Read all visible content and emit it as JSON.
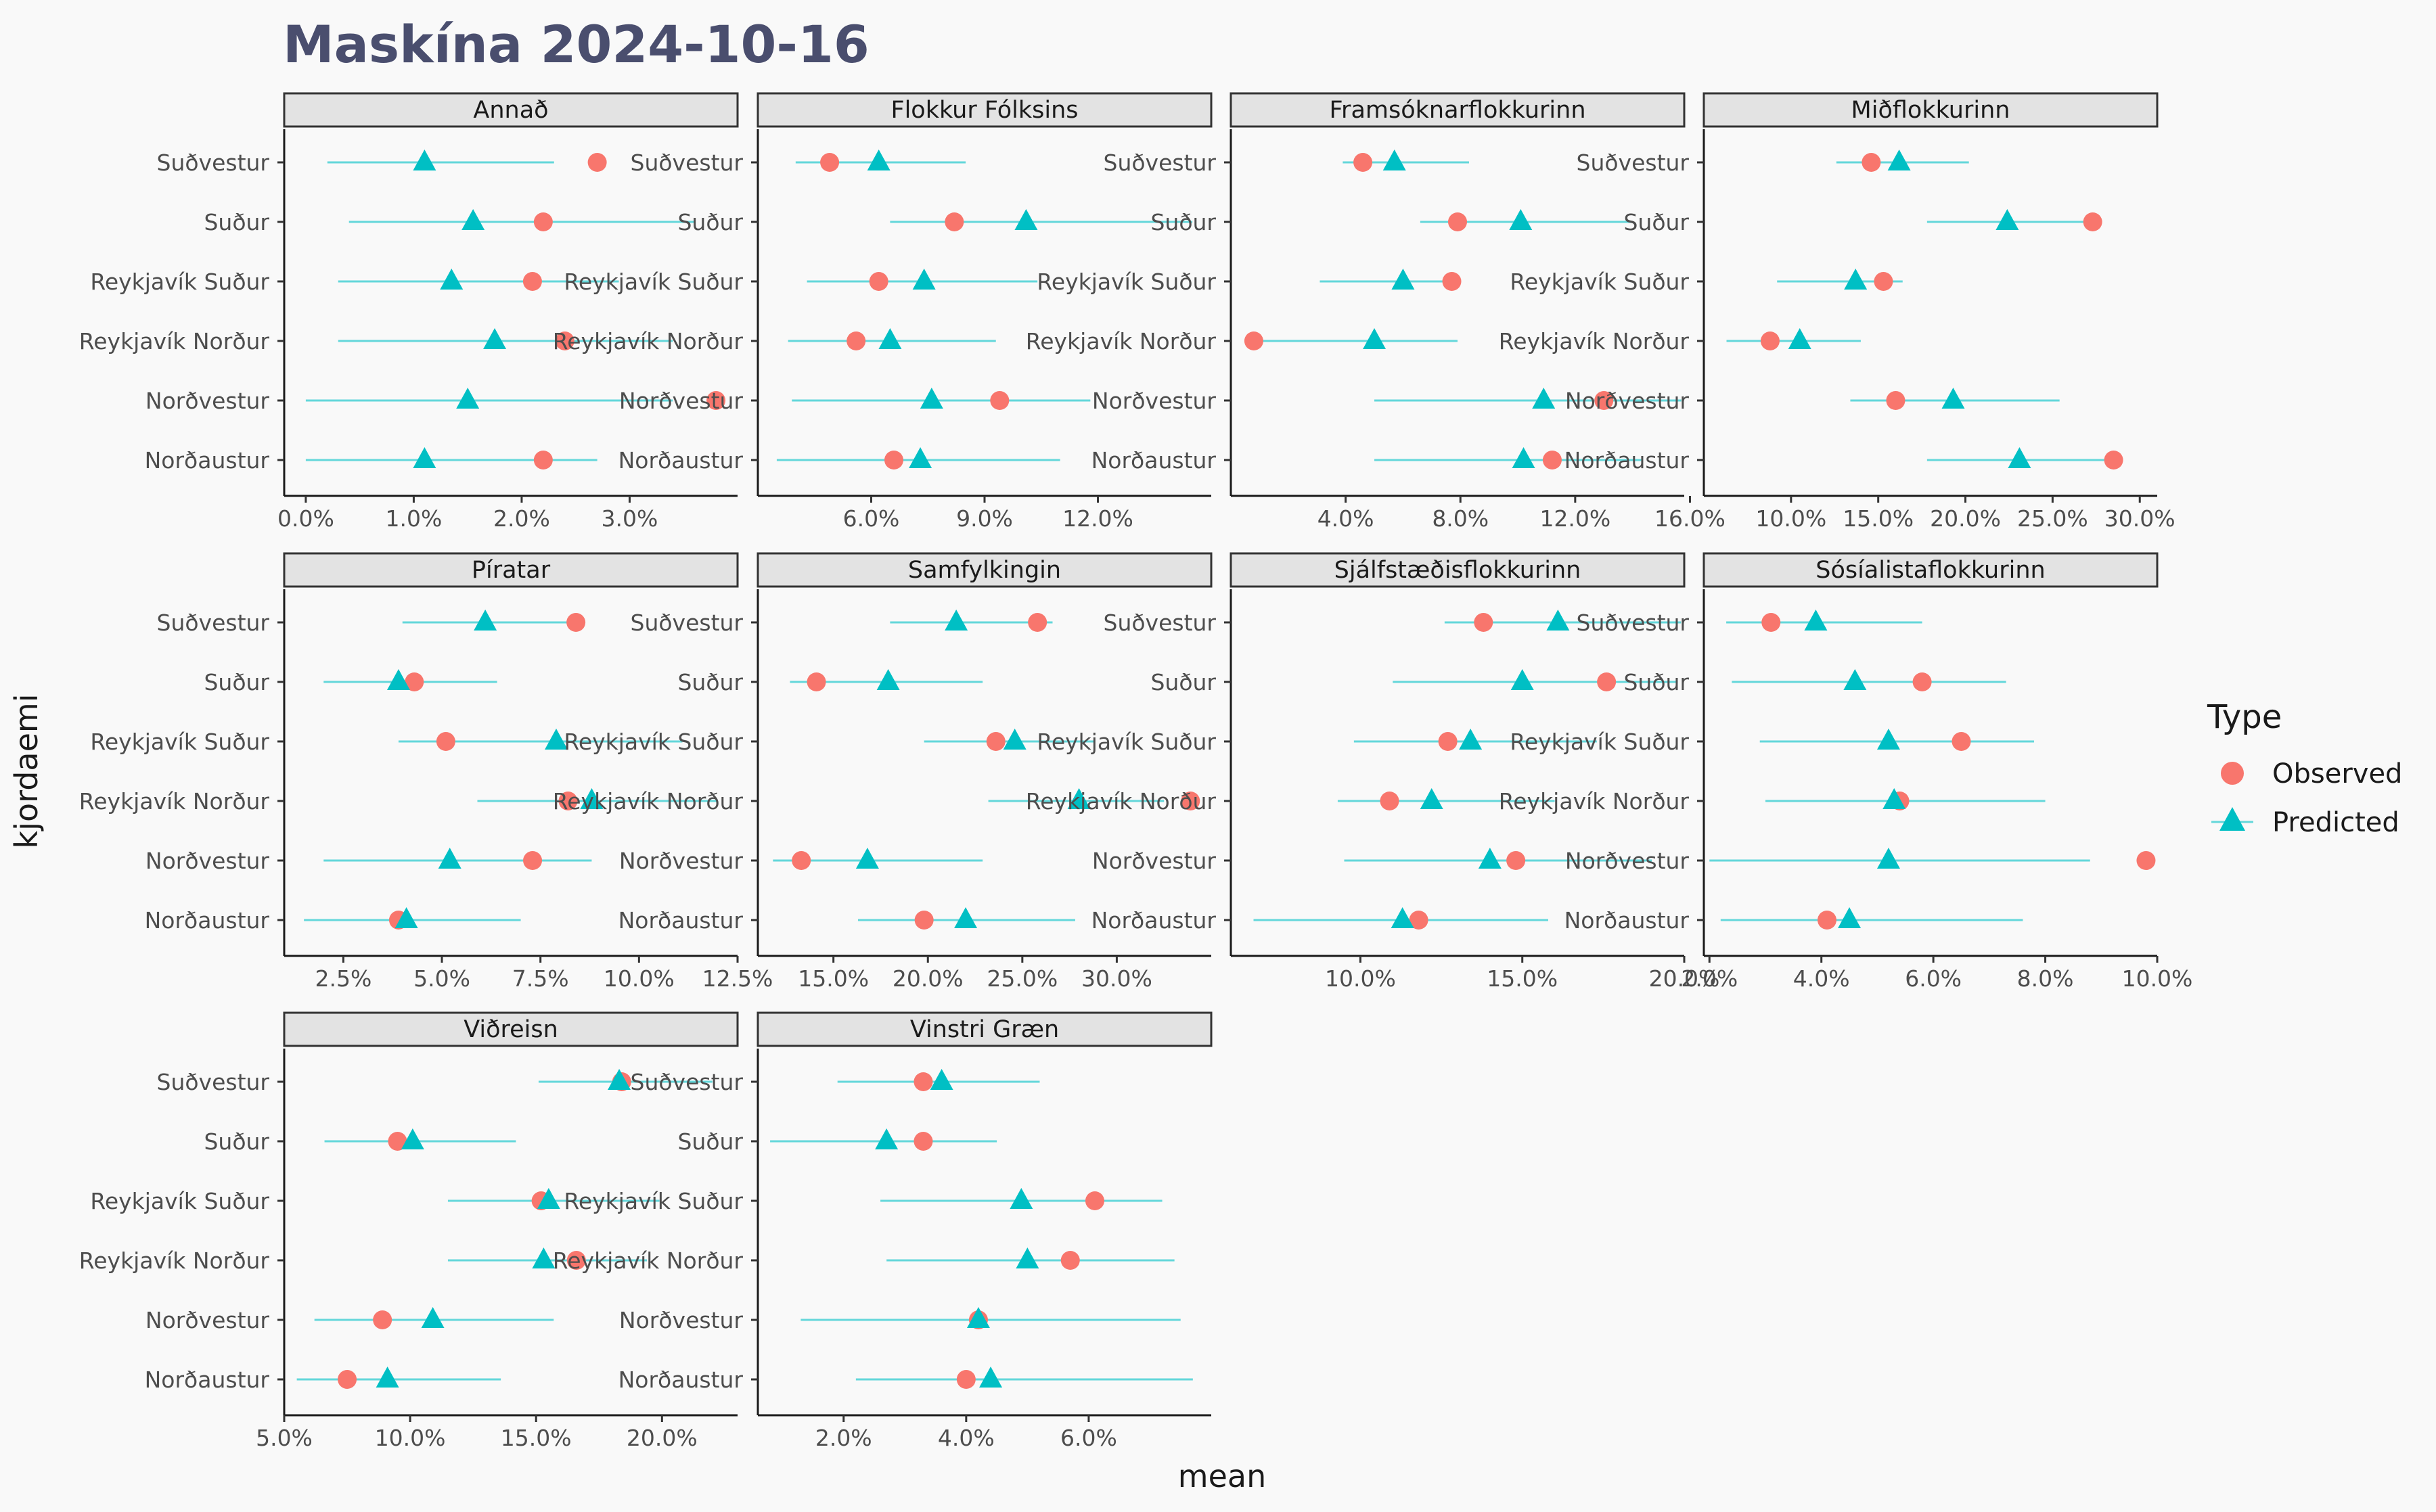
{
  "title": "Maskína 2024-10-16",
  "colors": {
    "observed": "#F8766D",
    "predicted": "#00BFC4",
    "interval": "#00BFC4"
  },
  "chart_data": {
    "type": "scatter",
    "facet_layout": "4 columns, free x scales",
    "xlabel": "mean",
    "ylabel": "kjordaemi",
    "legend": {
      "title": "Type",
      "position": "right",
      "entries": [
        "Observed",
        "Predicted"
      ]
    },
    "districts": [
      "Suðvestur",
      "Suður",
      "Reykjavík Suður",
      "Reykjavík Norður",
      "Norðvestur",
      "Norðaustur"
    ],
    "panels": [
      {
        "party": "Annað",
        "xlim": [
          -0.2,
          4.0
        ],
        "xticks": [
          0,
          1,
          2,
          3
        ],
        "xtick_labels": [
          "0.0%",
          "1.0%",
          "2.0%",
          "3.0%"
        ],
        "observed": [
          2.7,
          2.2,
          2.1,
          2.4,
          3.8,
          2.2
        ],
        "predicted": [
          1.1,
          1.55,
          1.35,
          1.75,
          1.5,
          1.1
        ],
        "lower": [
          0.2,
          0.4,
          0.3,
          0.3,
          0.0,
          0.0
        ],
        "upper": [
          2.3,
          3.6,
          2.9,
          3.4,
          3.4,
          2.7
        ]
      },
      {
        "party": "Flokkur Fólksins",
        "xlim": [
          3.0,
          15.0
        ],
        "xticks": [
          6,
          9,
          12
        ],
        "xtick_labels": [
          "6.0%",
          "9.0%",
          "12.0%"
        ],
        "observed": [
          4.9,
          8.2,
          6.2,
          5.6,
          9.4,
          6.6
        ],
        "predicted": [
          6.2,
          10.1,
          7.4,
          6.5,
          7.6,
          7.3
        ],
        "lower": [
          4.0,
          6.5,
          4.3,
          3.8,
          3.9,
          3.5
        ],
        "upper": [
          8.5,
          14.5,
          10.4,
          9.3,
          11.8,
          11.0
        ]
      },
      {
        "party": "Framsóknarflokkurinn",
        "xlim": [
          0.0,
          15.8
        ],
        "xticks": [
          4,
          8,
          12,
          16
        ],
        "xtick_labels": [
          "4.0%",
          "8.0%",
          "12.0%",
          "16.0%"
        ],
        "observed": [
          4.6,
          7.9,
          7.7,
          0.8,
          13.0,
          11.2
        ],
        "predicted": [
          5.7,
          10.1,
          6.0,
          5.0,
          10.9,
          10.2
        ],
        "lower": [
          3.9,
          6.6,
          3.1,
          0.8,
          5.0,
          5.0
        ],
        "upper": [
          8.3,
          14.0,
          7.7,
          7.9,
          15.7,
          14.3
        ]
      },
      {
        "party": "Miðflokkurinn",
        "xlim": [
          5.0,
          31.0
        ],
        "xticks": [
          10,
          15,
          20,
          25,
          30
        ],
        "xtick_labels": [
          "10.0%",
          "15.0%",
          "20.0%",
          "25.0%",
          "30.0%"
        ],
        "observed": [
          14.6,
          27.3,
          15.3,
          8.8,
          16.0,
          28.5
        ],
        "predicted": [
          16.2,
          22.4,
          13.7,
          10.5,
          19.3,
          23.1
        ],
        "lower": [
          12.6,
          17.8,
          9.2,
          6.3,
          13.4,
          17.8
        ],
        "upper": [
          20.2,
          27.3,
          16.4,
          14.0,
          25.4,
          28.7
        ]
      },
      {
        "party": "Píratar",
        "xlim": [
          1.0,
          12.5
        ],
        "xticks": [
          2.5,
          5,
          7.5,
          10,
          12.5
        ],
        "xtick_labels": [
          "2.5%",
          "5.0%",
          "7.5%",
          "10.0%",
          "12.5%"
        ],
        "observed": [
          8.4,
          4.3,
          5.1,
          8.2,
          7.3,
          3.9
        ],
        "predicted": [
          6.1,
          3.9,
          7.9,
          8.8,
          5.2,
          4.1
        ],
        "lower": [
          4.0,
          2.0,
          3.9,
          5.9,
          2.0,
          1.5
        ],
        "upper": [
          8.3,
          6.4,
          11.1,
          12.0,
          8.8,
          7.0
        ]
      },
      {
        "party": "Samfylkingin",
        "xlim": [
          11.0,
          35.0
        ],
        "xticks": [
          15,
          20,
          25,
          30
        ],
        "xtick_labels": [
          "15.0%",
          "20.0%",
          "25.0%",
          "30.0%"
        ],
        "observed": [
          25.8,
          14.1,
          23.6,
          33.9,
          13.3,
          19.8
        ],
        "predicted": [
          21.5,
          17.9,
          24.6,
          28.0,
          16.8,
          22.0
        ],
        "lower": [
          18.0,
          12.7,
          19.8,
          23.2,
          11.8,
          16.3
        ],
        "upper": [
          26.6,
          22.9,
          28.8,
          32.5,
          22.9,
          27.8
        ]
      },
      {
        "party": "Sjálfstæðisflokkurinn",
        "xlim": [
          6.0,
          20.0
        ],
        "xticks": [
          10,
          15,
          20
        ],
        "xtick_labels": [
          "10.0%",
          "15.0%",
          "20.0%"
        ],
        "observed": [
          13.8,
          17.6,
          12.7,
          10.9,
          14.8,
          11.8
        ],
        "predicted": [
          16.1,
          15.0,
          13.4,
          12.2,
          14.0,
          11.3
        ],
        "lower": [
          12.6,
          11.0,
          9.8,
          9.3,
          9.5,
          6.7
        ],
        "upper": [
          19.9,
          19.8,
          17.3,
          16.0,
          19.0,
          15.8
        ]
      },
      {
        "party": "Sósíalistaflokkurinn",
        "xlim": [
          1.9,
          10.0
        ],
        "xticks": [
          2,
          4,
          6,
          8,
          10
        ],
        "xtick_labels": [
          "2.0%",
          "4.0%",
          "6.0%",
          "8.0%",
          "10.0%"
        ],
        "observed": [
          3.1,
          5.8,
          6.5,
          5.4,
          9.8,
          4.1
        ],
        "predicted": [
          3.9,
          4.6,
          5.2,
          5.3,
          5.2,
          4.5
        ],
        "lower": [
          2.3,
          2.4,
          2.9,
          3.0,
          2.0,
          2.2
        ],
        "upper": [
          5.8,
          7.3,
          7.8,
          8.0,
          8.8,
          7.6
        ]
      },
      {
        "party": "Viðreisn",
        "xlim": [
          5.0,
          23.0
        ],
        "xticks": [
          5,
          10,
          15,
          20
        ],
        "xtick_labels": [
          "5.0%",
          "10.0%",
          "15.0%",
          "20.0%"
        ],
        "observed": [
          18.4,
          9.5,
          15.2,
          16.6,
          8.9,
          7.5
        ],
        "predicted": [
          18.3,
          10.1,
          15.5,
          15.3,
          10.9,
          9.1
        ],
        "lower": [
          15.1,
          6.6,
          11.5,
          11.5,
          6.2,
          5.5
        ],
        "upper": [
          22.0,
          14.2,
          19.9,
          19.4,
          15.7,
          13.6
        ]
      },
      {
        "party": "Vinstri Græn",
        "xlim": [
          0.6,
          8.0
        ],
        "xticks": [
          2,
          4,
          6
        ],
        "xtick_labels": [
          "2.0%",
          "4.0%",
          "6.0%"
        ],
        "observed": [
          3.3,
          3.3,
          6.1,
          5.7,
          4.2,
          4.0
        ],
        "predicted": [
          3.6,
          2.7,
          4.9,
          5.0,
          4.2,
          4.4
        ],
        "lower": [
          1.9,
          0.8,
          2.6,
          2.7,
          1.3,
          2.2
        ],
        "upper": [
          5.2,
          4.5,
          7.2,
          7.4,
          7.5,
          7.7
        ]
      }
    ]
  }
}
